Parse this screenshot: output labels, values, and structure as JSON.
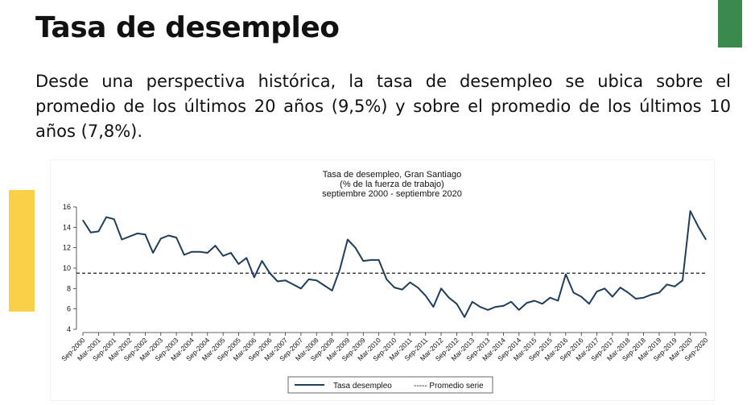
{
  "slide": {
    "title": "Tasa de desempleo",
    "body": "Desde una perspectiva histórica, la tasa de desempleo se ubica sobre el promedio de los últimos 20 años (9,5%) y sobre el promedio de los últimos 10 años (7,8%).",
    "accent_green": "#3a8a4e",
    "accent_yellow": "#f8d149"
  },
  "chart_data": {
    "type": "line",
    "title": [
      "Tasa de desempleo, Gran Santiago",
      "(% de la fuerza de trabajo)",
      "septiembre 2000 - septiembre 2020"
    ],
    "xlabel": "",
    "ylabel": "",
    "ylim": [
      4,
      16
    ],
    "yticks": [
      4,
      6,
      8,
      10,
      12,
      14,
      16
    ],
    "xtick_labels": [
      "Sep-2000",
      "Mar-2001",
      "Sep-2001",
      "Mar-2002",
      "Sep-2002",
      "Mar-2003",
      "Sep-2003",
      "Mar-2004",
      "Sep-2004",
      "Mar-2005",
      "Sep-2005",
      "Mar-2006",
      "Sep-2006",
      "Mar-2007",
      "Sep-2007",
      "Mar-2008",
      "Sep-2008",
      "Mar-2009",
      "Sep-2009",
      "Mar-2010",
      "Sep-2010",
      "Mar-2011",
      "Sep-2011",
      "Mar-2012",
      "Sep-2012",
      "Mar-2013",
      "Sep-2013",
      "Mar-2014",
      "Sep-2014",
      "Mar-2015",
      "Sep-2015",
      "Mar-2016",
      "Sep-2016",
      "Mar-2017",
      "Sep-2017",
      "Mar-2018",
      "Sep-2018",
      "Mar-2019",
      "Sep-2019",
      "Mar-2020",
      "Sep-2020"
    ],
    "series": [
      {
        "name": "Tasa desempleo",
        "color": "#1f3d5c",
        "values": [
          14.7,
          13.5,
          13.6,
          15.0,
          14.8,
          12.8,
          13.1,
          13.4,
          13.3,
          11.5,
          12.9,
          13.2,
          13.0,
          11.3,
          11.6,
          11.6,
          11.5,
          12.2,
          11.2,
          11.5,
          10.4,
          11.0,
          9.1,
          10.7,
          9.5,
          8.7,
          8.8,
          8.4,
          8.0,
          8.9,
          8.8,
          8.3,
          7.8,
          9.9,
          12.8,
          12.0,
          10.7,
          10.8,
          10.8,
          8.9,
          8.1,
          7.9,
          8.6,
          8.1,
          7.3,
          6.2,
          8.0,
          7.1,
          6.5,
          5.2,
          6.7,
          6.2,
          5.9,
          6.2,
          6.3,
          6.7,
          5.9,
          6.6,
          6.8,
          6.5,
          7.1,
          6.8,
          9.4,
          7.6,
          7.2,
          6.5,
          7.7,
          8.0,
          7.2,
          8.1,
          7.6,
          7.0,
          7.1,
          7.4,
          7.6,
          8.4,
          8.2,
          8.8,
          15.6,
          14.1,
          12.8
        ]
      },
      {
        "name": "Promedio serie",
        "color": "#333333",
        "style": "dashed",
        "value": 9.5
      }
    ],
    "legend": {
      "position": "bottom",
      "entries": [
        "Tasa desempleo",
        "----- Promedio serie"
      ]
    },
    "grid": false
  }
}
